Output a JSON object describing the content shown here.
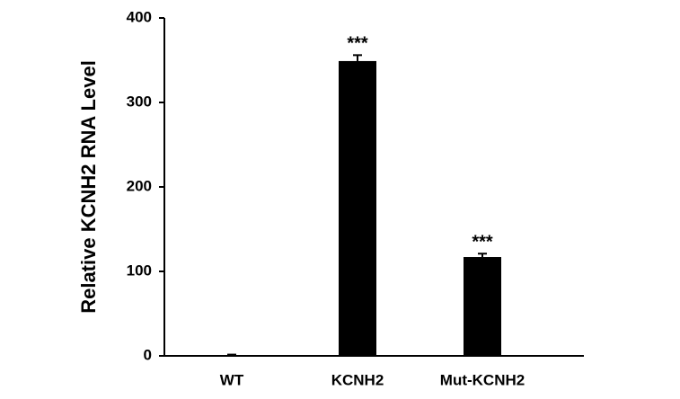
{
  "chart_data": {
    "type": "bar",
    "y_label": "Relative KCNH2 RNA Level",
    "categories": [
      "WT",
      "KCNH2",
      "Mut-KCNH2"
    ],
    "values": [
      1,
      349,
      117
    ],
    "errors": [
      0.5,
      7,
      4
    ],
    "color": "#000000",
    "annotations": [
      {
        "category": "KCNH2",
        "text": "***"
      },
      {
        "category": "Mut-KCNH2",
        "text": "***"
      }
    ],
    "ylim": [
      0,
      400
    ],
    "yticks": [
      0,
      100,
      200,
      300,
      400
    ],
    "grid": false
  }
}
